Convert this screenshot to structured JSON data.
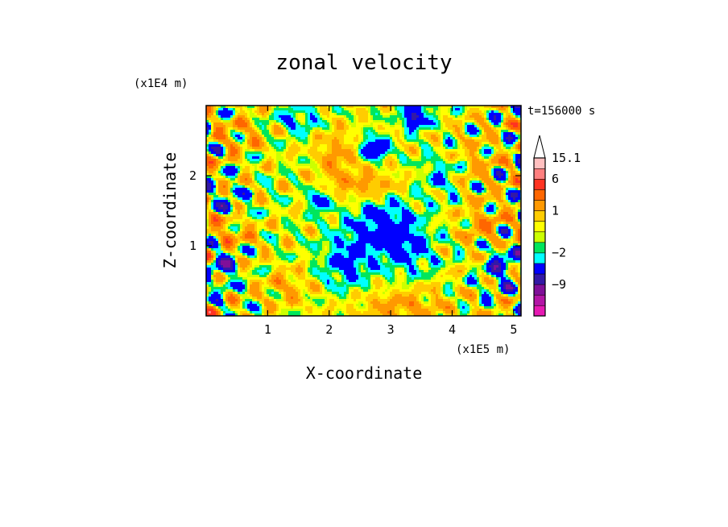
{
  "chart_data": {
    "type": "heatmap",
    "title": "zonal velocity",
    "xlabel": "X-coordinate",
    "ylabel": "Z-coordinate",
    "x_unit": "(x1E5 m)",
    "y_unit": "(x1E4 m)",
    "time_label": "t=156000 s",
    "xlim": [
      0,
      5.12
    ],
    "ylim": [
      0,
      3.0
    ],
    "x_ticks": [
      1,
      2,
      3,
      4,
      5
    ],
    "y_ticks": [
      1,
      2
    ],
    "x_tick_labels": [
      "1",
      "2",
      "3",
      "4",
      "5"
    ],
    "y_tick_labels": [
      "1",
      "2"
    ],
    "colorbar": {
      "colors": [
        "#e619b3",
        "#b315a6",
        "#800f99",
        "#3319a6",
        "#0000ff",
        "#00ffff",
        "#00e65c",
        "#ccff00",
        "#ffff00",
        "#ffcc00",
        "#ff9900",
        "#ff6600",
        "#ff3322",
        "#ff7f7f",
        "#ffbfbf"
      ],
      "labels": [
        {
          "text": "15.1",
          "index": 14
        },
        {
          "text": "6",
          "index": 12
        },
        {
          "text": "1",
          "index": 9
        },
        {
          "text": "−2",
          "index": 5
        },
        {
          "text": "−9",
          "index": 2
        }
      ],
      "extend_max": true
    },
    "features": [
      {
        "x": 2.85,
        "z": 1.35,
        "sx": 0.55,
        "sz": 0.55,
        "a": -4.5
      },
      {
        "x": 2.25,
        "z": 0.75,
        "sx": 0.4,
        "sz": 0.4,
        "a": -3.5
      },
      {
        "x": 3.35,
        "z": 0.95,
        "sx": 0.4,
        "sz": 0.35,
        "a": -3.0
      },
      {
        "x": 2.7,
        "z": 1.85,
        "sx": 0.5,
        "sz": 0.25,
        "a": 4.5
      },
      {
        "x": 2.1,
        "z": 2.25,
        "sx": 0.3,
        "sz": 0.45,
        "a": 3.0
      },
      {
        "x": 3.2,
        "z": 0.12,
        "sx": 0.75,
        "sz": 0.25,
        "a": 3.2
      },
      {
        "x": 2.75,
        "z": 2.4,
        "sx": 0.2,
        "sz": 0.15,
        "a": -7.0
      },
      {
        "x": 3.4,
        "z": 2.85,
        "sx": 0.2,
        "sz": 0.18,
        "a": -8.0
      },
      {
        "x": 0.3,
        "z": 0.7,
        "sx": 0.2,
        "sz": 0.2,
        "a": -6.0
      },
      {
        "x": 0.4,
        "z": 1.2,
        "sx": 0.4,
        "sz": 0.2,
        "a": 3.5
      },
      {
        "x": 0.4,
        "z": 1.6,
        "sx": 0.3,
        "sz": 0.25,
        "a": -2.5
      },
      {
        "x": 0.6,
        "z": 2.6,
        "sx": 0.4,
        "sz": 0.25,
        "a": 2.5
      },
      {
        "x": 1.85,
        "z": 1.65,
        "sx": 0.15,
        "sz": 0.15,
        "a": -6.0
      },
      {
        "x": 4.5,
        "z": 1.3,
        "sx": 0.35,
        "sz": 0.3,
        "a": 3.0
      },
      {
        "x": 4.8,
        "z": 0.7,
        "sx": 0.25,
        "sz": 0.3,
        "a": -5.0
      },
      {
        "x": 4.4,
        "z": 2.2,
        "sx": 0.3,
        "sz": 0.3,
        "a": 2.0
      },
      {
        "x": 3.8,
        "z": 2.0,
        "sx": 0.3,
        "sz": 0.3,
        "a": -2.5
      },
      {
        "x": 1.3,
        "z": 0.4,
        "sx": 0.4,
        "sz": 0.25,
        "a": 2.5
      },
      {
        "x": 1.5,
        "z": 2.8,
        "sx": 0.4,
        "sz": 0.2,
        "a": -3.0
      }
    ]
  }
}
